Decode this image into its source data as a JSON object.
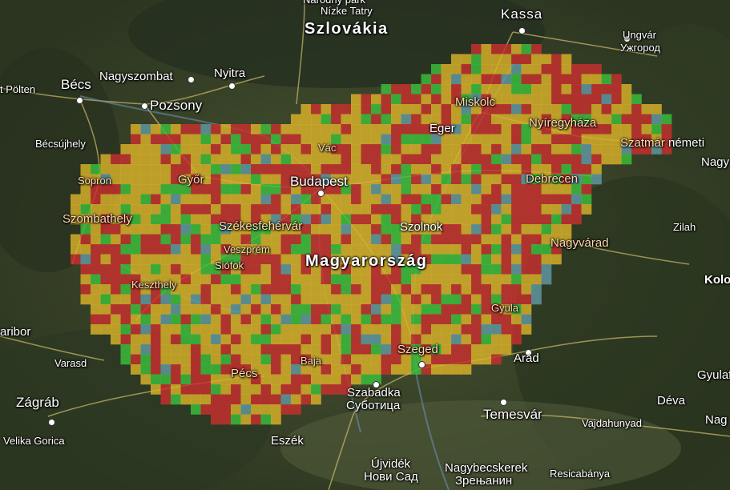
{
  "map": {
    "country_label": "Magyarország",
    "colors": {
      "high": "#c8302e",
      "medium": "#d9b22a",
      "low": "#3cbf3c",
      "none": "#5f9aa3",
      "road": "#e8d27a",
      "river": "#6b8fb0"
    },
    "labels": {
      "narodny_park": "Národný park",
      "nizke_tatry": "Nízke Tatry",
      "szlovakia": "Szlovákia",
      "kassa": "Kassa",
      "ungvar": "Ungvár",
      "uzhgorod": "Ужгород",
      "st_polten": "t Pölten",
      "becs": "Bécs",
      "nagyszombat": "Nagyszombat",
      "nyitra": "Nyitra",
      "pozsony": "Pozsony",
      "miskolc": "Miskolc",
      "eger": "Eger",
      "nyiregyhaza": "Nyíregyháza",
      "szatmarnemeti_a": "Szatmár",
      "szatmarnemeti_b": "németi",
      "becsujhely": "Bécsújhely",
      "sopron": "Sopron",
      "gyor": "Győr",
      "vac": "Vác",
      "budapest": "Budapest",
      "debrecen": "Debrecen",
      "nagy": "Nagy",
      "szombathely": "Szombathely",
      "szekesfehervar": "Székesfehérvár",
      "szolnok": "Szolnok",
      "veszprem": "Veszprém",
      "siofok": "Siófok",
      "zilah": "Zilah",
      "nagyvarad": "Nagyvárad",
      "kolo": "Kolo",
      "keszthely": "Keszthely",
      "gyula": "Gyula",
      "maribor": "aribor",
      "szeged": "Szeged",
      "arad": "Arad",
      "varasd": "Varasd",
      "pecs": "Pécs",
      "baja": "Baja",
      "gyulaf": "Gyulaf",
      "zagrab": "Zágráb",
      "szabadka": "Szabadka",
      "subotica": "Суботица",
      "deva": "Déva",
      "temesvar": "Temesvár",
      "vajdahunyad": "Vajdahunyad",
      "nag_edge": "Nag",
      "velika_gorica": "Velika Gorica",
      "eszek": "Eszék",
      "ujvidek": "Újvidék",
      "novi_sad": "Нови Сад",
      "nagybecskerek": "Nagybecskerek",
      "zrenjanin": "Зрењанин",
      "resicabanya": "Resicabánya"
    }
  }
}
